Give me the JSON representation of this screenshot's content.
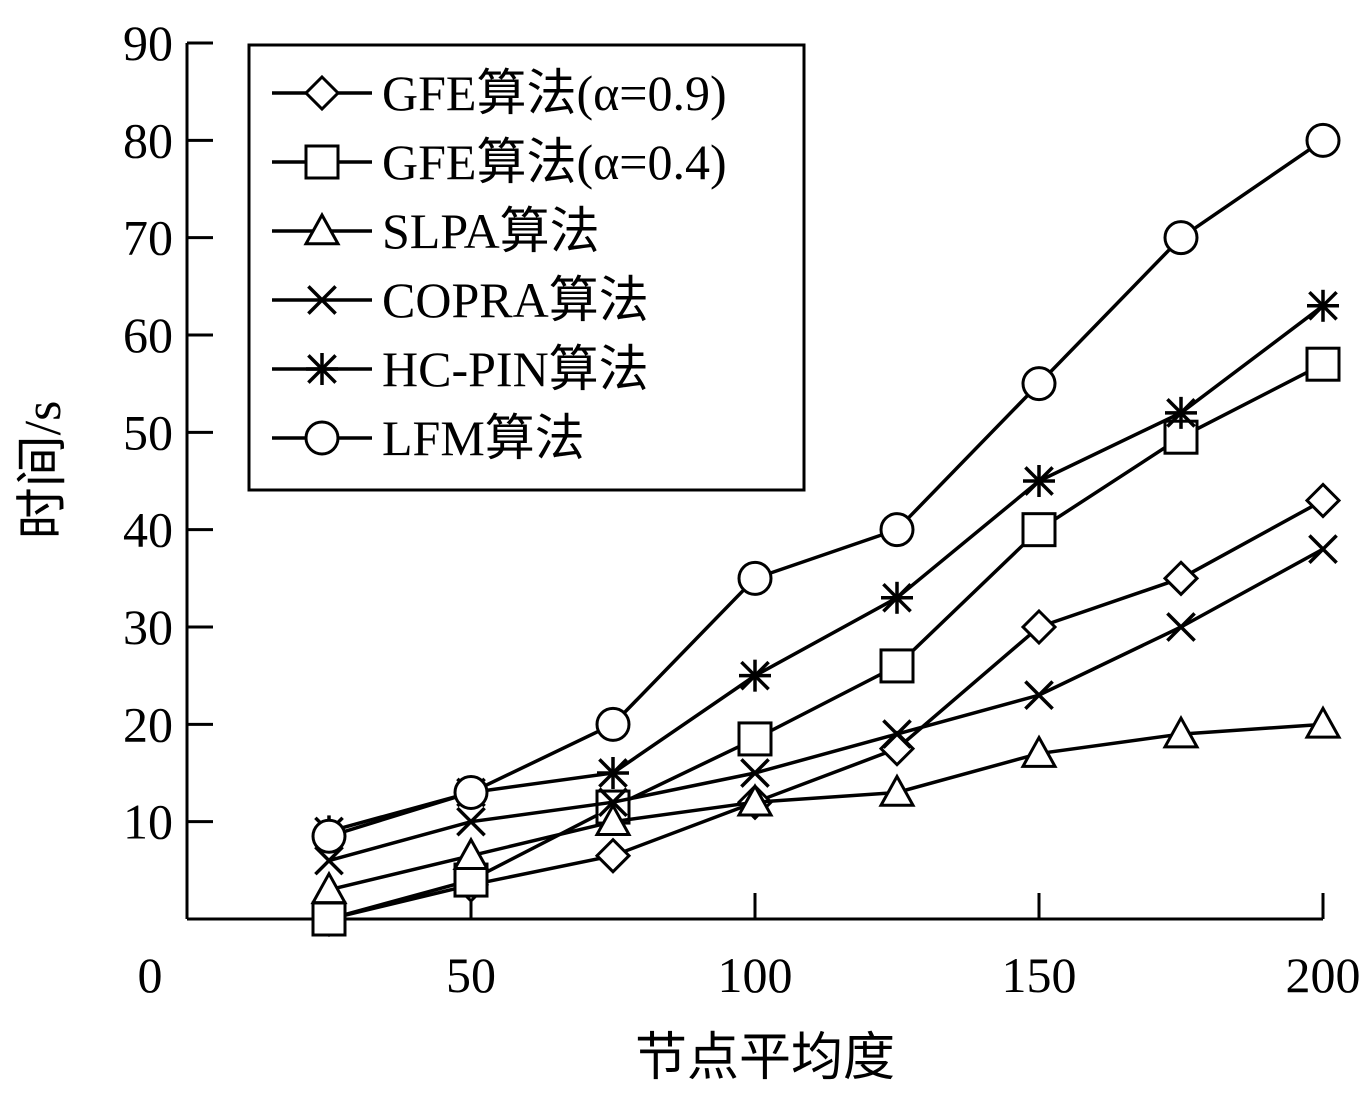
{
  "chart_data": {
    "type": "line",
    "title": "",
    "xlabel": "节点平均度",
    "ylabel": "时间/s",
    "xlim": [
      0,
      200
    ],
    "ylim": [
      0,
      90
    ],
    "x_ticks": [
      0,
      50,
      100,
      150,
      200
    ],
    "y_ticks": [
      10,
      20,
      30,
      40,
      50,
      60,
      70,
      80,
      90
    ],
    "grid": false,
    "legend_position": "top-left",
    "x": [
      25,
      50,
      75,
      100,
      125,
      150,
      175,
      200
    ],
    "series": [
      {
        "name": "GFE算法(α=0.9)",
        "marker": "diamond",
        "values": [
          0,
          3.5,
          6.5,
          12,
          17.5,
          30,
          35,
          43
        ]
      },
      {
        "name": "GFE算法(α=0.4)",
        "marker": "square",
        "values": [
          0,
          4,
          11.5,
          18.5,
          26,
          40,
          49.5,
          57
        ]
      },
      {
        "name": "SLPA算法",
        "marker": "triangle",
        "values": [
          3,
          6.5,
          10,
          12,
          13,
          17,
          19,
          20
        ]
      },
      {
        "name": "COPRA算法",
        "marker": "x",
        "values": [
          6,
          10,
          12,
          15,
          19,
          23,
          30,
          38
        ]
      },
      {
        "name": "HC-PIN算法",
        "marker": "star",
        "values": [
          9,
          13,
          15,
          25,
          33,
          45,
          52,
          63
        ]
      },
      {
        "name": "LFM算法",
        "marker": "circle",
        "values": [
          8.5,
          13,
          20,
          35,
          40,
          55,
          70,
          80
        ]
      }
    ]
  }
}
